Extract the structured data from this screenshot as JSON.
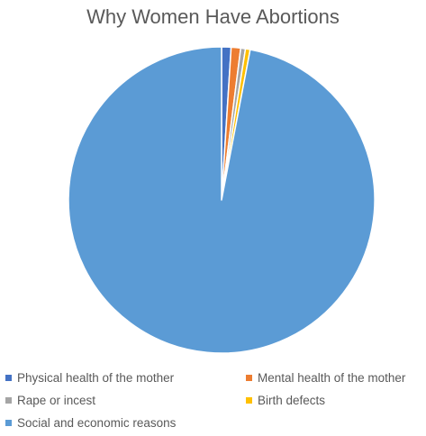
{
  "chart_data": {
    "type": "pie",
    "title": "Why Women Have Abortions",
    "slices": [
      {
        "label": "Physical health of the mother",
        "value": 1.0,
        "color": "#4472C4"
      },
      {
        "label": "Mental health of the mother",
        "value": 1.0,
        "color": "#ED7D31"
      },
      {
        "label": "Rape or incest",
        "value": 0.5,
        "color": "#A5A5A5"
      },
      {
        "label": "Birth defects",
        "value": 0.5,
        "color": "#FFC000"
      },
      {
        "label": "Social and economic reasons",
        "value": 97.0,
        "color": "#5B9BD5"
      }
    ],
    "legend_position": "bottom"
  }
}
